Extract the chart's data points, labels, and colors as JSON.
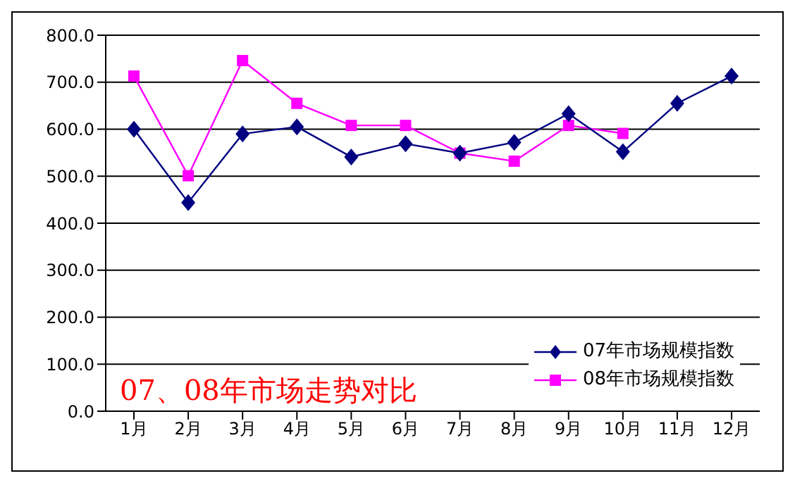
{
  "chart_data": {
    "type": "line",
    "categories": [
      "1月",
      "2月",
      "3月",
      "4月",
      "5月",
      "6月",
      "7月",
      "8月",
      "9月",
      "10月",
      "11月",
      "12月"
    ],
    "series": [
      {
        "name": "07年市场规模指数",
        "color": "#000080",
        "marker": "diamond",
        "values": [
          600,
          444,
          590,
          605,
          541,
          569,
          549,
          572,
          633,
          552,
          655,
          713
        ]
      },
      {
        "name": "08年市场规模指数",
        "color": "#ff00ff",
        "marker": "square",
        "values": [
          713,
          501,
          746,
          655,
          608,
          608,
          549,
          532,
          608,
          591,
          null,
          null
        ]
      }
    ],
    "ylim": [
      0,
      800
    ],
    "yticks": [
      {
        "value": 0,
        "label": "0.0"
      },
      {
        "value": 100,
        "label": "100.0"
      },
      {
        "value": 200,
        "label": "200.0"
      },
      {
        "value": 300,
        "label": "300.0"
      },
      {
        "value": 400,
        "label": "400.0"
      },
      {
        "value": 500,
        "label": "500.0"
      },
      {
        "value": 600,
        "label": "600.0"
      },
      {
        "value": 700,
        "label": "700.0"
      },
      {
        "value": 800,
        "label": "800.0"
      }
    ],
    "grid": "y",
    "legend": "bottom right",
    "annotations": [
      "07、08年市场走势对比"
    ]
  }
}
